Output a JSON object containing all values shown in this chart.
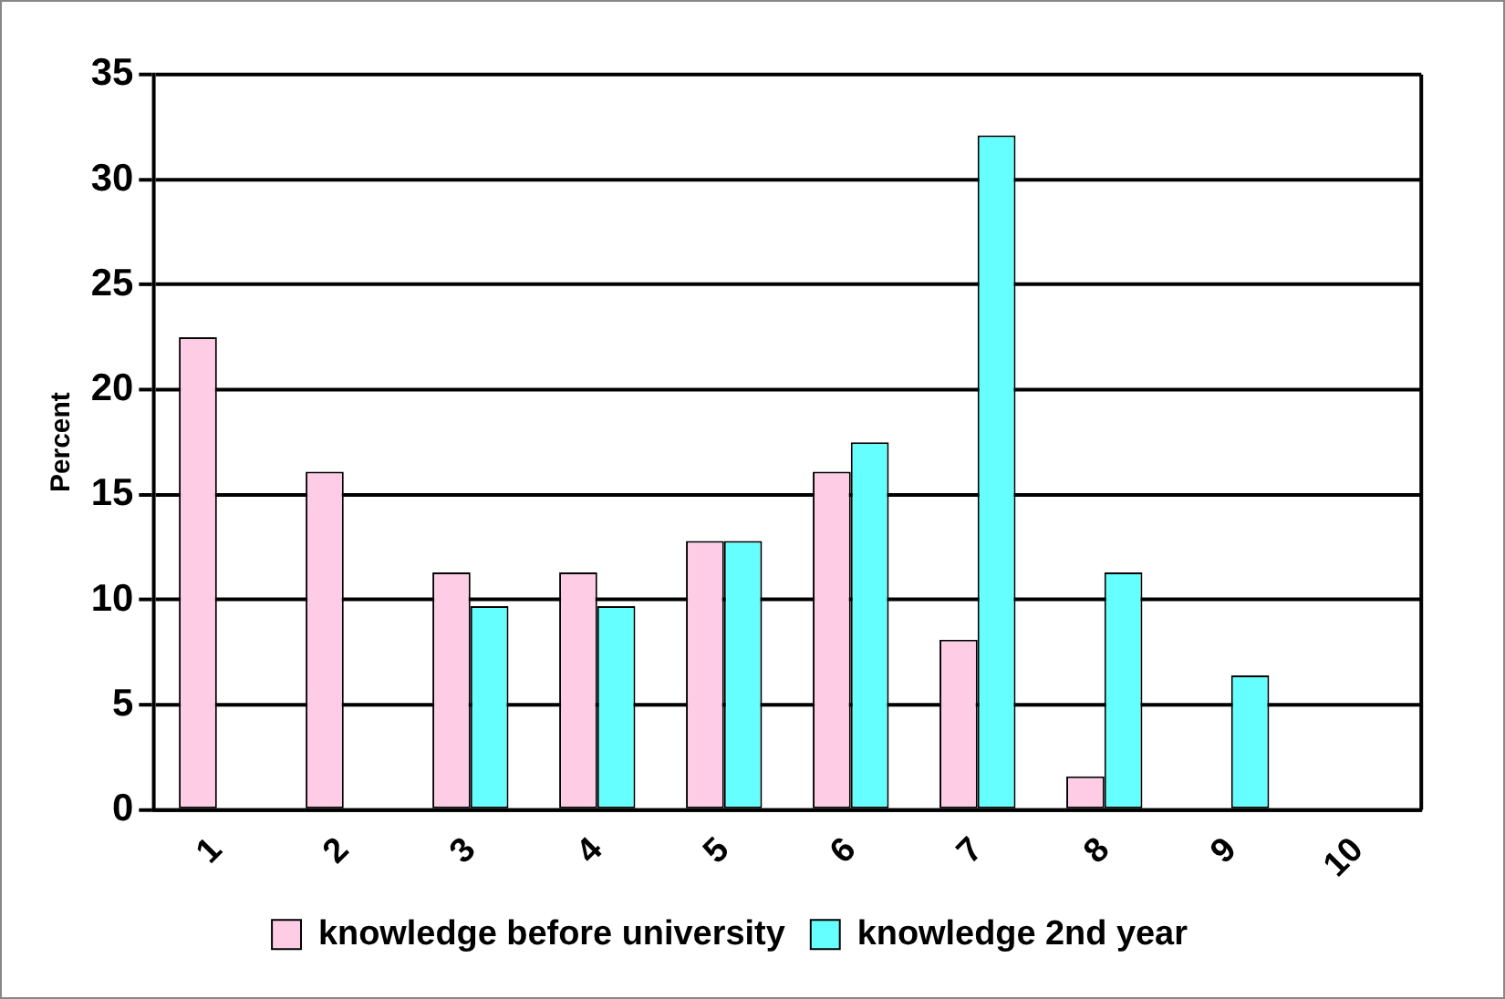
{
  "chart_data": {
    "type": "bar",
    "ylabel": "Percent",
    "categories": [
      "1",
      "2",
      "3",
      "4",
      "5",
      "6",
      "7",
      "8",
      "9",
      "10"
    ],
    "series": [
      {
        "name": "knowledge before university",
        "color": "#ffcce6",
        "values": [
          22.5,
          16.1,
          11.3,
          11.3,
          12.8,
          16.1,
          8.1,
          1.6,
          0,
          0
        ]
      },
      {
        "name": "knowledge 2nd year",
        "color": "#66ffff",
        "values": [
          0,
          0,
          9.7,
          9.7,
          12.8,
          17.5,
          32.1,
          11.3,
          6.4,
          0
        ]
      }
    ],
    "ylim": [
      0,
      35
    ],
    "yticks": [
      0,
      5,
      10,
      15,
      20,
      25,
      30,
      35
    ],
    "grid": "y",
    "legend": "bottom"
  }
}
